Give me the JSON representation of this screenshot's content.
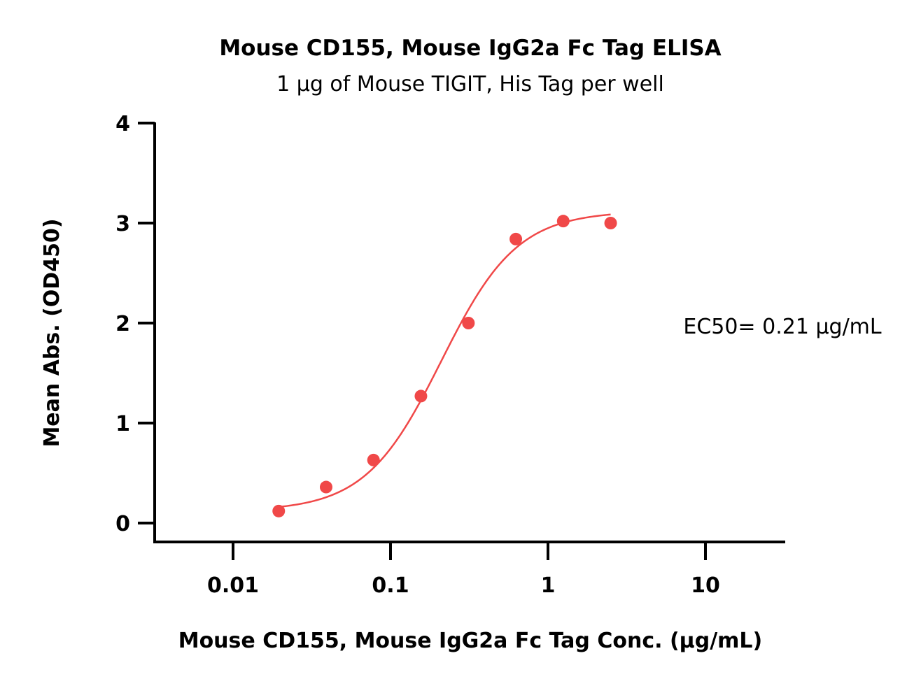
{
  "chart_data": {
    "type": "scatter",
    "title": "Mouse CD155, Mouse IgG2a Fc Tag ELISA",
    "subtitle": "1 μg of Mouse TIGIT, His Tag per well",
    "xlabel": "Mouse CD155, Mouse IgG2a Fc Tag Conc. (μg/mL)",
    "ylabel": "Mean Abs. (OD450)",
    "xscale": "log",
    "xlim": [
      0.005,
      30
    ],
    "ylim": [
      -0.2,
      4
    ],
    "x_ticks": [
      0.01,
      0.1,
      1,
      10
    ],
    "x_tick_labels": [
      "0.01",
      "0.1",
      "1",
      "10"
    ],
    "y_ticks": [
      0,
      1,
      2,
      3,
      4
    ],
    "y_tick_labels": [
      "0",
      "1",
      "2",
      "3",
      "4"
    ],
    "grid": false,
    "series": [
      {
        "color": "#f04848",
        "x": [
          0.0195,
          0.039,
          0.078,
          0.156,
          0.3125,
          0.625,
          1.25,
          2.5
        ],
        "y": [
          0.12,
          0.36,
          0.63,
          1.27,
          2.0,
          2.84,
          3.02,
          3.0
        ]
      }
    ],
    "fit": {
      "type": "4PL",
      "bottom": 0.12,
      "top": 3.12,
      "ec50": 0.21,
      "hill": 1.8,
      "x_range": [
        0.0195,
        2.5
      ],
      "color": "#f04848"
    },
    "annotation": "EC50= 0.21 μg/mL"
  }
}
